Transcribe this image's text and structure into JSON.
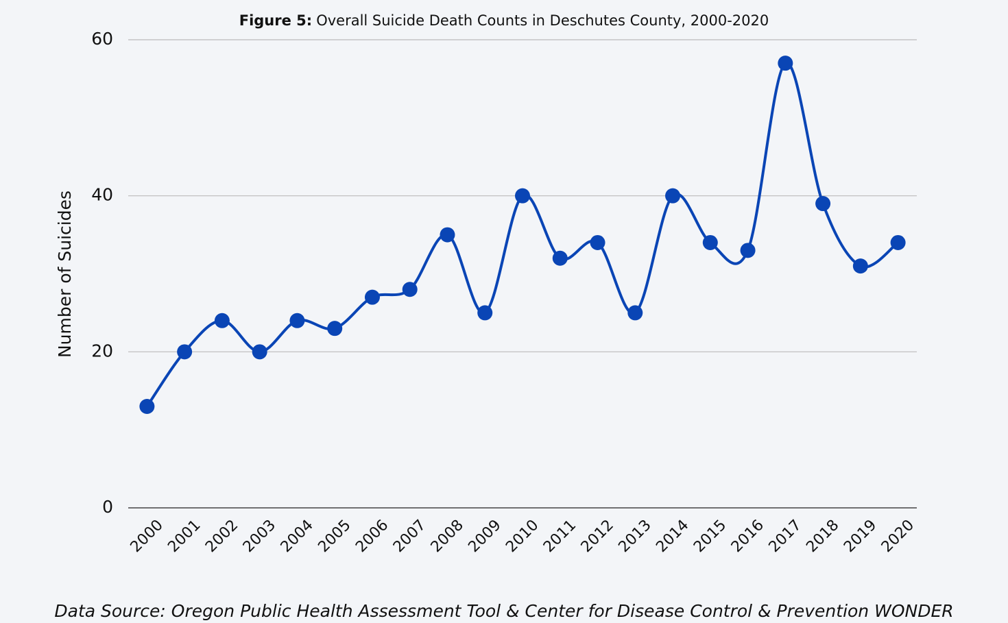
{
  "chart_data": {
    "type": "line",
    "title_label": "Figure 5:",
    "title": "Overall Suicide Death Counts in Deschutes County, 2000-2020",
    "y_label": "Number of Suicides",
    "source": "Data Source: Oregon Public Health Assessment Tool & Center for Disease Control & Prevention WONDER",
    "categories": [
      "2000",
      "2001",
      "2002",
      "2003",
      "2004",
      "2005",
      "2006",
      "2007",
      "2008",
      "2009",
      "2010",
      "2011",
      "2012",
      "2013",
      "2014",
      "2015",
      "2016",
      "2017",
      "2018",
      "2019",
      "2020"
    ],
    "values": [
      13,
      20,
      24,
      20,
      24,
      23,
      27,
      28,
      35,
      25,
      40,
      32,
      34,
      25,
      40,
      34,
      33,
      57,
      39,
      31,
      34
    ],
    "color": "#0a45b5",
    "smooth": true,
    "ylim": [
      0,
      60
    ],
    "yticks": [
      0,
      20,
      40,
      60
    ],
    "grid": true
  }
}
